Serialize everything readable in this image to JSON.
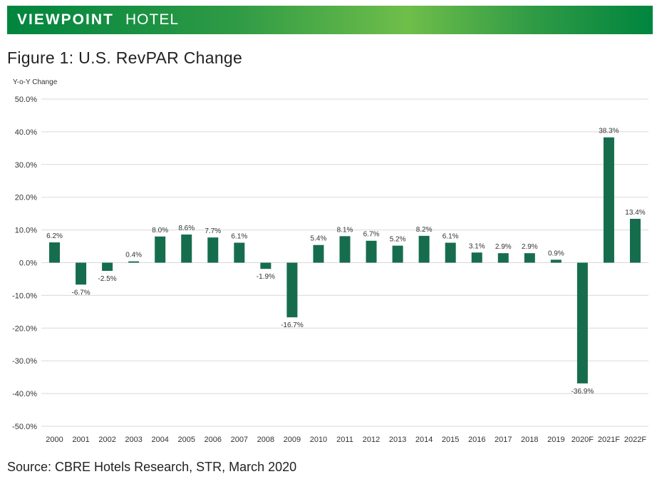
{
  "header": {
    "brand_strong": "VIEWPOINT",
    "brand_light": "HOTEL"
  },
  "figure_title": "Figure 1: U.S. RevPAR Change",
  "source": "Source: CBRE Hotels Research, STR, March 2020",
  "colors": {
    "bar": "#166d4d",
    "gridline": "#d9d9d9",
    "banner_dark": "#00853f",
    "banner_light": "#6fbe4a"
  },
  "chart_data": {
    "type": "bar",
    "title": "Figure 1: U.S. RevPAR Change",
    "ylabel": "Y-o-Y Change",
    "xlabel": "",
    "ylim": [
      -50,
      50
    ],
    "ytick_step": 10,
    "yticks": [
      "50.0%",
      "40.0%",
      "30.0%",
      "20.0%",
      "10.0%",
      "0.0%",
      "-10.0%",
      "-20.0%",
      "-30.0%",
      "-40.0%",
      "-50.0%"
    ],
    "grid": true,
    "categories": [
      "2000",
      "2001",
      "2002",
      "2003",
      "2004",
      "2005",
      "2006",
      "2007",
      "2008",
      "2009",
      "2010",
      "2011",
      "2012",
      "2013",
      "2014",
      "2015",
      "2016",
      "2017",
      "2018",
      "2019",
      "2020F",
      "2021F",
      "2022F"
    ],
    "values": [
      6.2,
      -6.7,
      -2.5,
      0.4,
      8.0,
      8.6,
      7.7,
      6.1,
      -1.9,
      -16.7,
      5.4,
      8.1,
      6.7,
      5.2,
      8.2,
      6.1,
      3.1,
      2.9,
      2.9,
      0.9,
      -36.9,
      38.3,
      13.4
    ],
    "labels": [
      "6.2%",
      "-6.7%",
      "-2.5%",
      "0.4%",
      "8.0%",
      "8.6%",
      "7.7%",
      "6.1%",
      "-1.9%",
      "-16.7%",
      "5.4%",
      "8.1%",
      "6.7%",
      "5.2%",
      "8.2%",
      "6.1%",
      "3.1%",
      "2.9%",
      "2.9%",
      "0.9%",
      "-36.9%",
      "38.3%",
      "13.4%"
    ]
  }
}
